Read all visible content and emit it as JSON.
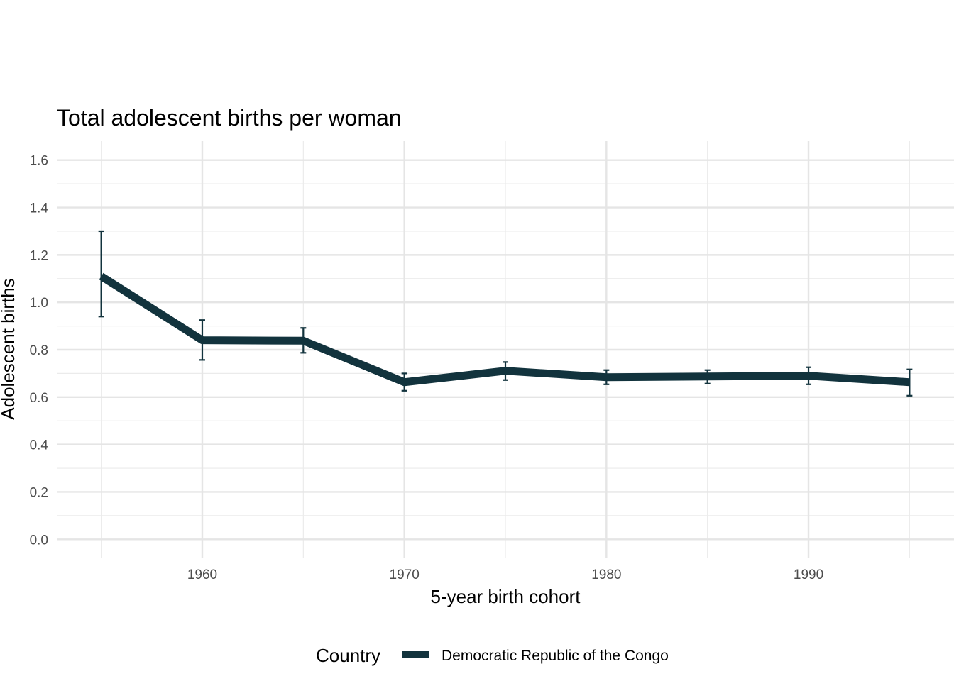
{
  "chart_data": {
    "type": "line",
    "title": "Total adolescent births per woman",
    "xlabel": "5-year birth cohort",
    "ylabel": "Adolescent births",
    "x": [
      1955,
      1960,
      1965,
      1970,
      1975,
      1980,
      1985,
      1990,
      1995
    ],
    "series": [
      {
        "name": "Democratic Republic of the Congo",
        "color": "#12333d",
        "values": [
          1.11,
          0.84,
          0.838,
          0.663,
          0.711,
          0.684,
          0.687,
          0.69,
          0.663
        ],
        "lower": [
          0.94,
          0.757,
          0.787,
          0.627,
          0.672,
          0.654,
          0.657,
          0.654,
          0.606
        ],
        "upper": [
          1.3,
          0.925,
          0.892,
          0.7,
          0.748,
          0.714,
          0.714,
          0.726,
          0.717
        ]
      }
    ],
    "xlim": [
      1952.8,
      1997.2
    ],
    "ylim": [
      -0.08,
      1.68
    ],
    "xticks": [
      1960,
      1970,
      1980,
      1990
    ],
    "xtick_labels": [
      "1960",
      "1970",
      "1980",
      "1990"
    ],
    "yticks": [
      0,
      0.2,
      0.4,
      0.6,
      0.8,
      1.0,
      1.2,
      1.4,
      1.6
    ],
    "ytick_labels": [
      "0.0",
      "0.2",
      "0.4",
      "0.6",
      "0.8",
      "1.0",
      "1.2",
      "1.4",
      "1.6"
    ],
    "grid": true,
    "legend": {
      "title": "Country",
      "position": "bottom"
    }
  }
}
